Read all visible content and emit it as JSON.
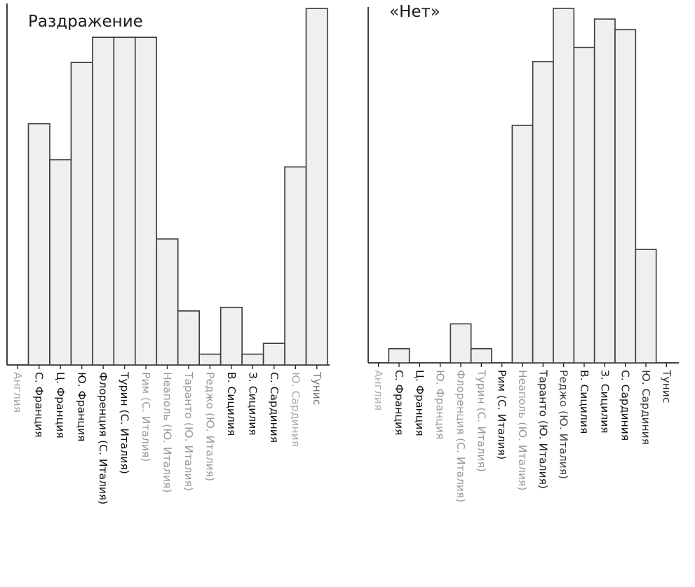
{
  "charts": {
    "left": {
      "title": "Раздражение"
    },
    "right": {
      "title": "«Нет»"
    }
  },
  "chart_data": [
    {
      "type": "bar",
      "title": "Раздражение",
      "xlabel": "",
      "ylabel": "",
      "grid": false,
      "categories": [
        "Англия",
        "С. Франция",
        "Ц. Франция",
        "Ю. Франция",
        "Флоренция (С. Италия)",
        "Турин (С. Италия)",
        "Рим (С. Италия)",
        "Неаполь (Ю. Италия)",
        "Таранто (Ю. Италия)",
        "Реджо (Ю. Италия)",
        "В. Сицилия",
        "З. Сицилия",
        "С. Сардиния",
        "Ю. Сардиния",
        "Тунис"
      ],
      "label_colors": [
        "#a8a8a8",
        "#111111",
        "#111111",
        "#111111",
        "#111111",
        "#111111",
        "#999999",
        "#999999",
        "#999999",
        "#999999",
        "#111111",
        "#111111",
        "#111111",
        "#aaaaaa",
        "#777777"
      ],
      "values": [
        0,
        67,
        57,
        84,
        91,
        91,
        91,
        35,
        15,
        3,
        16,
        3,
        6,
        55,
        99
      ],
      "ylim": [
        0,
        100
      ]
    },
    {
      "type": "bar",
      "title": "«Нет»",
      "xlabel": "",
      "ylabel": "",
      "grid": false,
      "categories": [
        "Англия",
        "С. Франция",
        "Ц. Франция",
        "Ю. Франция",
        "Флоренция (С. Италия)",
        "Турин (С. Италия)",
        "Рим (С. Италия)",
        "Неаполь (Ю. Италия)",
        "Таранто (Ю. Италия)",
        "Реджо (Ю. Италия)",
        "В. Сицилия",
        "З. Сицилия",
        "С. Сардиния",
        "Ю. Сардиния",
        "Тунис"
      ],
      "label_colors": [
        "#b0b0b0",
        "#111111",
        "#111111",
        "#999999",
        "#999999",
        "#999999",
        "#111111",
        "#999999",
        "#222222",
        "#444444",
        "#111111",
        "#111111",
        "#111111",
        "#333333",
        "#333333"
      ],
      "values": [
        0,
        4,
        0,
        0,
        11,
        4,
        0,
        67,
        85,
        100,
        89,
        97,
        94,
        32,
        0
      ],
      "ylim": [
        0,
        100
      ]
    }
  ]
}
